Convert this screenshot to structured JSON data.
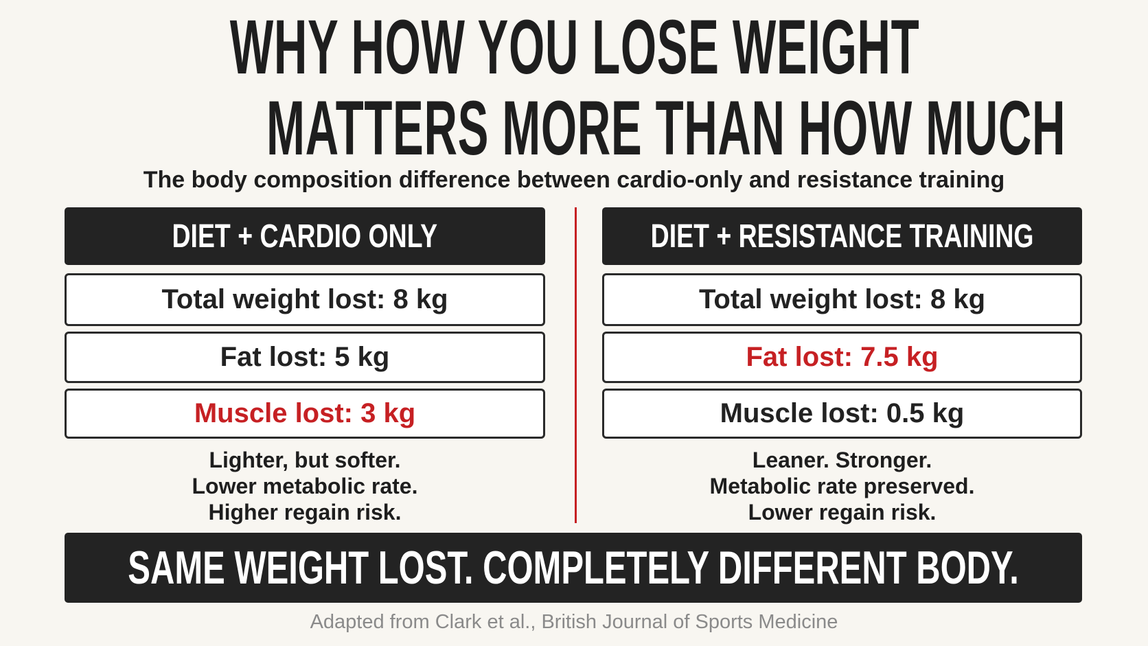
{
  "header": {
    "title_lines": [
      "WHY HOW YOU LOSE WEIGHT",
      "MATTERS MORE THAN HOW MUCH"
    ],
    "subtitle": "The body composition difference between cardio-only and resistance training"
  },
  "columns": [
    {
      "heading": "DIET + CARDIO ONLY",
      "rows": [
        {
          "text": "Total weight lost: 8 kg",
          "color": "#222222"
        },
        {
          "text": "Fat lost: 5 kg",
          "color": "#222222"
        },
        {
          "text": "Muscle lost: 3 kg",
          "color": "#c62023"
        }
      ],
      "notes": [
        "Lighter, but softer.",
        "Lower metabolic rate.",
        "Higher regain risk."
      ]
    },
    {
      "heading": "DIET + RESISTANCE TRAINING",
      "rows": [
        {
          "text": "Total weight lost: 8 kg",
          "color": "#222222"
        },
        {
          "text": "Fat lost: 7.5 kg",
          "color": "#c62023"
        },
        {
          "text": "Muscle lost: 0.5 kg",
          "color": "#222222"
        }
      ],
      "notes": [
        "Leaner. Stronger.",
        "Metabolic rate preserved.",
        "Lower regain risk."
      ]
    }
  ],
  "footer": {
    "banner": "SAME WEIGHT LOST. COMPLETELY DIFFERENT BODY.",
    "source": "Adapted from Clark et al., British Journal of Sports Medicine"
  }
}
